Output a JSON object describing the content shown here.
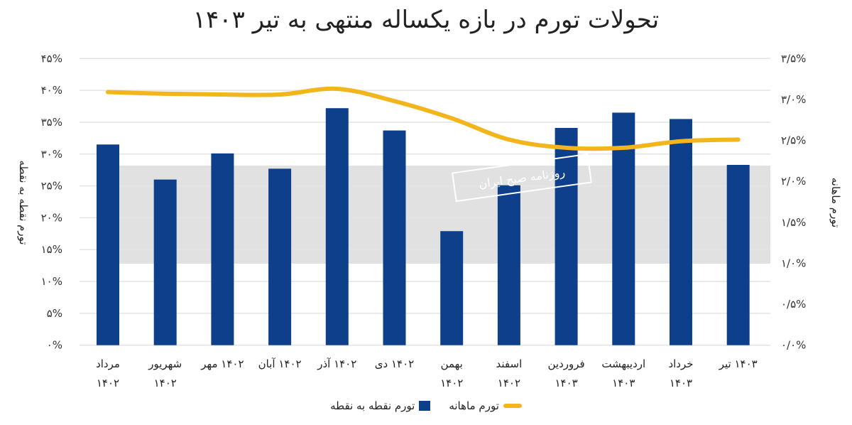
{
  "chart_data": {
    "type": "bar",
    "title": "تحولات تورم در بازه یکساله منتهی به تیر ۱۴۰۳",
    "categories": [
      [
        "مرداد",
        "۱۴۰۲"
      ],
      [
        "شهریور",
        "۱۴۰۲"
      ],
      [
        "۱۴۰۲ مهر",
        ""
      ],
      [
        "۱۴۰۲ آبان",
        ""
      ],
      [
        "۱۴۰۲ آذر",
        ""
      ],
      [
        "۱۴۰۲ دی",
        ""
      ],
      [
        "بهمن",
        "۱۴۰۲"
      ],
      [
        "اسفند",
        "۱۴۰۲"
      ],
      [
        "فروردین",
        "۱۴۰۳"
      ],
      [
        "اردیبهشت",
        "۱۴۰۳"
      ],
      [
        "خرداد",
        "۱۴۰۳"
      ],
      [
        "۱۴۰۳ تیر",
        ""
      ]
    ],
    "series": [
      {
        "name": "تورم نقطه به نقطه",
        "type": "bar",
        "axis": "left",
        "color": "#0d3f8a",
        "values": [
          31.5,
          26.0,
          30.1,
          27.7,
          37.2,
          33.7,
          17.9,
          25.1,
          34.1,
          36.5,
          35.5,
          28.3
        ]
      },
      {
        "name": "تورم ماهانه",
        "type": "line",
        "axis": "right",
        "color": "#f2b51c",
        "values": [
          3.09,
          3.07,
          3.06,
          3.06,
          3.13,
          2.98,
          2.77,
          2.51,
          2.41,
          2.41,
          2.49,
          2.51
        ]
      }
    ],
    "y_left": {
      "label": "تورم نقطه به نقطه",
      "range": [
        0,
        45
      ],
      "ticks": [
        0,
        5,
        10,
        15,
        20,
        25,
        30,
        35,
        40,
        45
      ],
      "tick_labels": [
        "۰%",
        "۵%",
        "۱۰%",
        "۱۵%",
        "۲۰%",
        "۲۵%",
        "۳۰%",
        "۳۵%",
        "۴۰%",
        "۴۵%"
      ]
    },
    "y_right": {
      "label": "تورم ماهانه",
      "range": [
        0,
        3.5
      ],
      "ticks": [
        0,
        0.5,
        1,
        1.5,
        2,
        2.5,
        3,
        3.5
      ],
      "tick_labels": [
        "۰/۰%",
        "۰/۵%",
        "۱/۰%",
        "۱/۵%",
        "۲/۰%",
        "۲/۵%",
        "۳/۰%",
        "۳/۵%"
      ]
    },
    "grid": true,
    "legend": "bottom"
  },
  "watermark": "روزنامه صبح ایران"
}
